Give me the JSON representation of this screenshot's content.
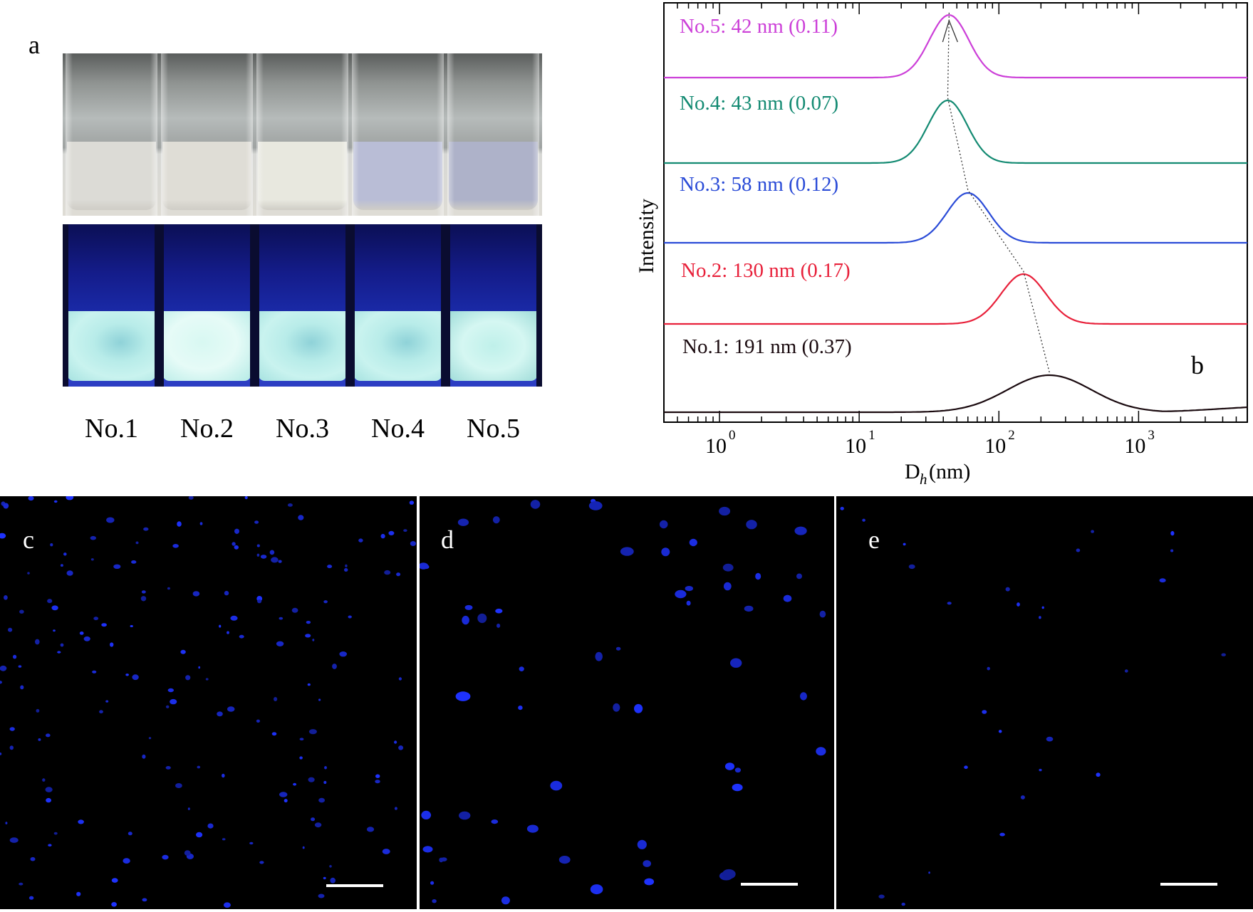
{
  "panel_a": {
    "letter": "a",
    "samples": [
      {
        "label": "No.1",
        "liquid_color": "#dcdbd6"
      },
      {
        "label": "No.2",
        "liquid_color": "#dfddd6"
      },
      {
        "label": "No.3",
        "liquid_color": "#e8e8df"
      },
      {
        "label": "No.4",
        "liquid_color": "#b9bdd6"
      },
      {
        "label": "No.5",
        "liquid_color": "#aeb2c9"
      }
    ]
  },
  "panel_b": {
    "letter": "b",
    "chart_data": {
      "type": "line",
      "xscale": "log",
      "xlim": [
        0.4,
        6000
      ],
      "xlabel_main": "D",
      "xlabel_sub": "h",
      "xlabel_unit": "(nm)",
      "ylabel": "Intensity",
      "x_tick_labels": [
        {
          "value": 1,
          "base": "10",
          "exp": "0"
        },
        {
          "value": 10,
          "base": "10",
          "exp": "1"
        },
        {
          "value": 100,
          "base": "10",
          "exp": "2"
        },
        {
          "value": 1000,
          "base": "10",
          "exp": "3"
        }
      ],
      "series": [
        {
          "name": "No.1",
          "label": "No.1: 191 nm (0.37)",
          "color": "#1a0a0f",
          "peak_nm": 230,
          "sigma_log": 0.3
        },
        {
          "name": "No.2",
          "label": "No.2: 130 nm (0.17)",
          "color": "#e8203a",
          "peak_nm": 150,
          "sigma_log": 0.16
        },
        {
          "name": "No.3",
          "label": "No.3: 58 nm (0.12)",
          "color": "#2a4bd7",
          "peak_nm": 60,
          "sigma_log": 0.15
        },
        {
          "name": "No.4",
          "label": "No.4: 43 nm (0.07)",
          "color": "#138a72",
          "peak_nm": 43,
          "sigma_log": 0.14
        },
        {
          "name": "No.5",
          "label": "No.5: 42 nm (0.11)",
          "color": "#cc3fd8",
          "peak_nm": 44,
          "sigma_log": 0.14
        }
      ]
    }
  },
  "panel_c": {
    "letter": "c"
  },
  "panel_d": {
    "letter": "d"
  },
  "panel_e": {
    "letter": "e"
  }
}
